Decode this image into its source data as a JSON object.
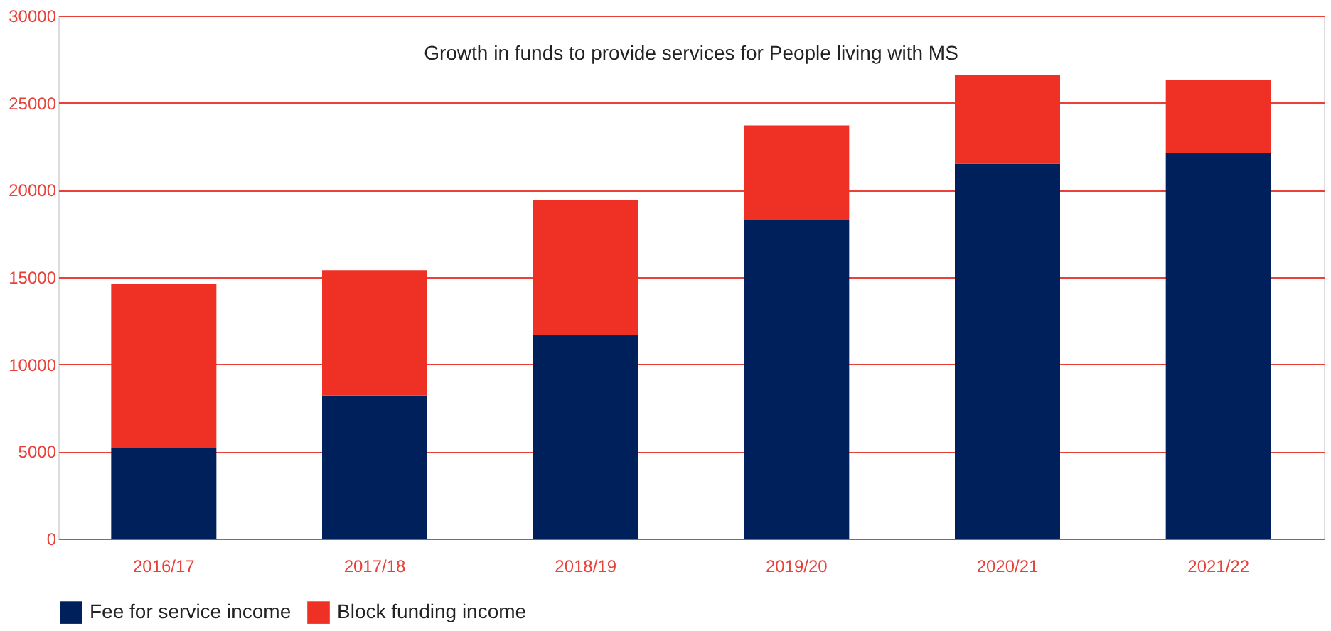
{
  "chart_data": {
    "type": "bar",
    "title": "Growth in funds to provide services for People living with MS",
    "stacked": true,
    "categories": [
      "2016/17",
      "2017/18",
      "2018/19",
      "2019/20",
      "2020/21",
      "2021/22"
    ],
    "series": [
      {
        "name": "Fee for service income",
        "color": "#00205b",
        "values": [
          5200,
          8200,
          11700,
          18300,
          21500,
          22100
        ]
      },
      {
        "name": "Block funding income",
        "color": "#ee3124",
        "values": [
          9400,
          7200,
          7700,
          5400,
          5100,
          4200
        ]
      }
    ],
    "ylim": [
      0,
      30000
    ],
    "yticks": [
      0,
      5000,
      10000,
      15000,
      20000,
      25000,
      30000
    ],
    "grid": "y",
    "legend": "bottom"
  }
}
